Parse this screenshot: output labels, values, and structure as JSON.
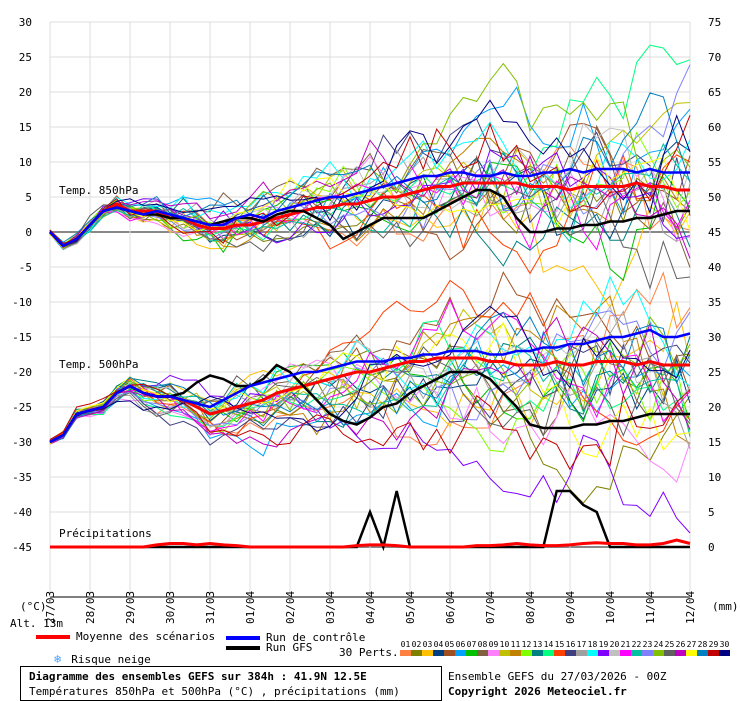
{
  "chart_data": {
    "type": "line",
    "title": "Diagramme des ensembles GEFS sur 384h : 41.9N 12.5E",
    "subtitle": "Températures 850hPa et 500hPa (°C) , précipitations (mm)",
    "x_tick_labels": [
      "28/03",
      "29/03",
      "30/03",
      "31/03",
      "01/04",
      "02/04",
      "03/04",
      "04/04",
      "05/04",
      "06/04",
      "07/04",
      "08/04",
      "09/04",
      "10/04",
      "11/04",
      "12/04"
    ],
    "x_tick_labels_extra": "27/03",
    "y_left_ticks": [
      30,
      25,
      20,
      15,
      10,
      5,
      0,
      -5,
      -10,
      -15,
      -20,
      -25,
      -30,
      -35,
      -40,
      -45
    ],
    "y_right_ticks": [
      75,
      70,
      65,
      60,
      55,
      50,
      45,
      40,
      35,
      30,
      25,
      20,
      15,
      10,
      5,
      0
    ],
    "ylim_left": [
      -45,
      30
    ],
    "ylabel_left": "(°C)",
    "ylabel_right": "(mm)",
    "section_labels": {
      "t850": "Temp. 850hPa",
      "t500": "Temp. 500hPa",
      "precip": "Précipitations"
    },
    "series": [
      {
        "name": "Moyenne des scénarios",
        "panel": "t850",
        "color": "#ff0000",
        "values": [
          0,
          -2,
          -1,
          1,
          3,
          4,
          3,
          3,
          3,
          2,
          2,
          1,
          0.5,
          0.5,
          1,
          1,
          1.5,
          2,
          2.5,
          3,
          3.5,
          3.5,
          4,
          4,
          4.5,
          5,
          5,
          5.5,
          6,
          6.5,
          6.5,
          7,
          7,
          7,
          7,
          7,
          6.5,
          6.5,
          6.5,
          6,
          6.5,
          6.5,
          6.5,
          6.5,
          7,
          6.5,
          6.5,
          6,
          6
        ]
      },
      {
        "name": "Run GFS",
        "panel": "t850",
        "color": "#000000",
        "values": [
          0,
          -2,
          -1,
          1,
          3,
          3.5,
          3,
          2.5,
          2.5,
          2,
          2,
          1.5,
          1,
          1.5,
          2,
          2,
          1.5,
          2.5,
          3,
          3,
          2,
          1,
          -1,
          0,
          1,
          2,
          2,
          2,
          2,
          3,
          4,
          5,
          6,
          6,
          5,
          2,
          0,
          0,
          0.5,
          0.5,
          1,
          1,
          1.5,
          1.5,
          2,
          2,
          2.5,
          3,
          3
        ]
      },
      {
        "name": "Run de contrôle",
        "panel": "t850",
        "color": "#0000ff",
        "values": [
          0,
          -2,
          -1,
          1,
          3,
          3.5,
          3,
          2.5,
          3,
          2.5,
          2,
          1.5,
          1,
          1,
          2,
          2.5,
          2,
          3,
          3.5,
          4,
          4.5,
          5,
          5,
          5.5,
          6,
          6.5,
          7,
          7.5,
          8,
          8,
          8.5,
          8.5,
          8,
          8,
          8.5,
          8,
          8,
          8.5,
          8.5,
          9,
          8.5,
          9,
          9,
          9,
          8.5,
          9,
          8.5,
          8.5,
          8.5
        ]
      },
      {
        "name": "Moyenne des scénarios",
        "panel": "t500",
        "color": "#ff0000",
        "values": [
          -30,
          -29,
          -26,
          -25.5,
          -25,
          -23,
          -22,
          -23,
          -23.5,
          -23.5,
          -24,
          -25,
          -26,
          -25.5,
          -25,
          -24.5,
          -24,
          -23,
          -22.5,
          -22,
          -21.5,
          -21,
          -20.5,
          -20,
          -20,
          -19.5,
          -19,
          -18.5,
          -18.5,
          -18,
          -18,
          -18,
          -18,
          -18.5,
          -18.5,
          -19,
          -19,
          -19,
          -18.5,
          -19,
          -19,
          -18.5,
          -18.5,
          -18.5,
          -19,
          -18.5,
          -19,
          -19,
          -19
        ]
      },
      {
        "name": "Run GFS",
        "panel": "t500",
        "color": "#000000",
        "values": [
          -30,
          -29,
          -26,
          -25.5,
          -25,
          -23,
          -22,
          -23,
          -23.5,
          -23.5,
          -23,
          -21.5,
          -20.5,
          -21,
          -22,
          -22,
          -21,
          -19,
          -20,
          -22,
          -24,
          -26,
          -27,
          -27.5,
          -26.5,
          -25,
          -24.5,
          -23,
          -22,
          -21,
          -20,
          -20,
          -20,
          -21,
          -23,
          -25,
          -27.5,
          -28,
          -28,
          -28,
          -27.5,
          -27.5,
          -27,
          -27,
          -26.5,
          -26,
          -26,
          -26,
          -26
        ]
      },
      {
        "name": "Run de contrôle",
        "panel": "t500",
        "color": "#0000ff",
        "values": [
          -30,
          -29,
          -26,
          -25.5,
          -25,
          -23,
          -22,
          -23,
          -23.5,
          -23.5,
          -24,
          -24.5,
          -25,
          -24,
          -23,
          -22,
          -21.5,
          -21,
          -20.5,
          -20,
          -20,
          -19.5,
          -19,
          -18.5,
          -18.5,
          -18.5,
          -18,
          -18,
          -17.5,
          -17.5,
          -17,
          -17,
          -17,
          -17.5,
          -17.5,
          -17,
          -17,
          -16.5,
          -16.5,
          -16,
          -16,
          -15.5,
          -15,
          -15,
          -14.5,
          -14,
          -15,
          -15,
          -14.5
        ]
      },
      {
        "name": "Run GFS",
        "panel": "precip",
        "color": "#000000",
        "values": [
          0,
          0,
          0,
          0,
          0,
          0,
          0,
          0,
          0,
          0,
          0,
          0,
          0,
          0,
          0,
          0,
          0,
          0,
          0,
          0,
          0,
          0,
          0,
          0,
          5,
          0,
          8,
          0,
          0,
          0,
          0,
          0,
          0,
          0,
          0,
          0,
          0,
          0,
          8,
          8,
          6,
          5,
          0,
          0,
          0,
          0,
          0,
          0,
          0
        ]
      },
      {
        "name": "Moyenne des scénarios",
        "panel": "precip",
        "color": "#ff0000",
        "values": [
          0,
          0,
          0,
          0,
          0,
          0,
          0,
          0,
          0.3,
          0.5,
          0.5,
          0.3,
          0.5,
          0.3,
          0.2,
          0,
          0,
          0,
          0,
          0,
          0,
          0,
          0,
          0.2,
          0.3,
          0.3,
          0.2,
          0,
          0,
          0,
          0,
          0,
          0.2,
          0.2,
          0.3,
          0.5,
          0.3,
          0.2,
          0.2,
          0.3,
          0.5,
          0.6,
          0.5,
          0.5,
          0.3,
          0.3,
          0.5,
          1,
          0.5
        ]
      }
    ],
    "perturbation_count_label": "30 Perts.",
    "perturbation_labels": [
      "01",
      "02",
      "03",
      "04",
      "05",
      "06",
      "07",
      "08",
      "09",
      "10",
      "11",
      "12",
      "13",
      "14",
      "15",
      "16",
      "17",
      "18",
      "19",
      "20",
      "21",
      "22",
      "23",
      "24",
      "25",
      "26",
      "27",
      "28",
      "29",
      "30"
    ],
    "perturbation_colors": [
      "#ff8040",
      "#808000",
      "#ffc000",
      "#004080",
      "#a05020",
      "#00a0ff",
      "#00c000",
      "#806040",
      "#ff80ff",
      "#c0c000",
      "#c08000",
      "#80ff00",
      "#008080",
      "#00ff80",
      "#ff4000",
      "#404080",
      "#a0a0a0",
      "#00ffff",
      "#8000ff",
      "#c0c0c0",
      "#ff00ff",
      "#00c0a0",
      "#8080ff",
      "#80c000",
      "#606060",
      "#c000c0",
      "#ffff00",
      "#0080c0",
      "#c00000",
      "#000080"
    ]
  },
  "legend": {
    "alt": "Alt. 13m",
    "mean": "Moyenne des scénarios",
    "control": "Run de contrôle",
    "gfs": "Run GFS",
    "snow": "Risque neige"
  },
  "footer": {
    "run_info": "Ensemble GEFS du 27/03/2026 - 00Z",
    "copyright": "Copyright 2026 Meteociel.fr"
  }
}
